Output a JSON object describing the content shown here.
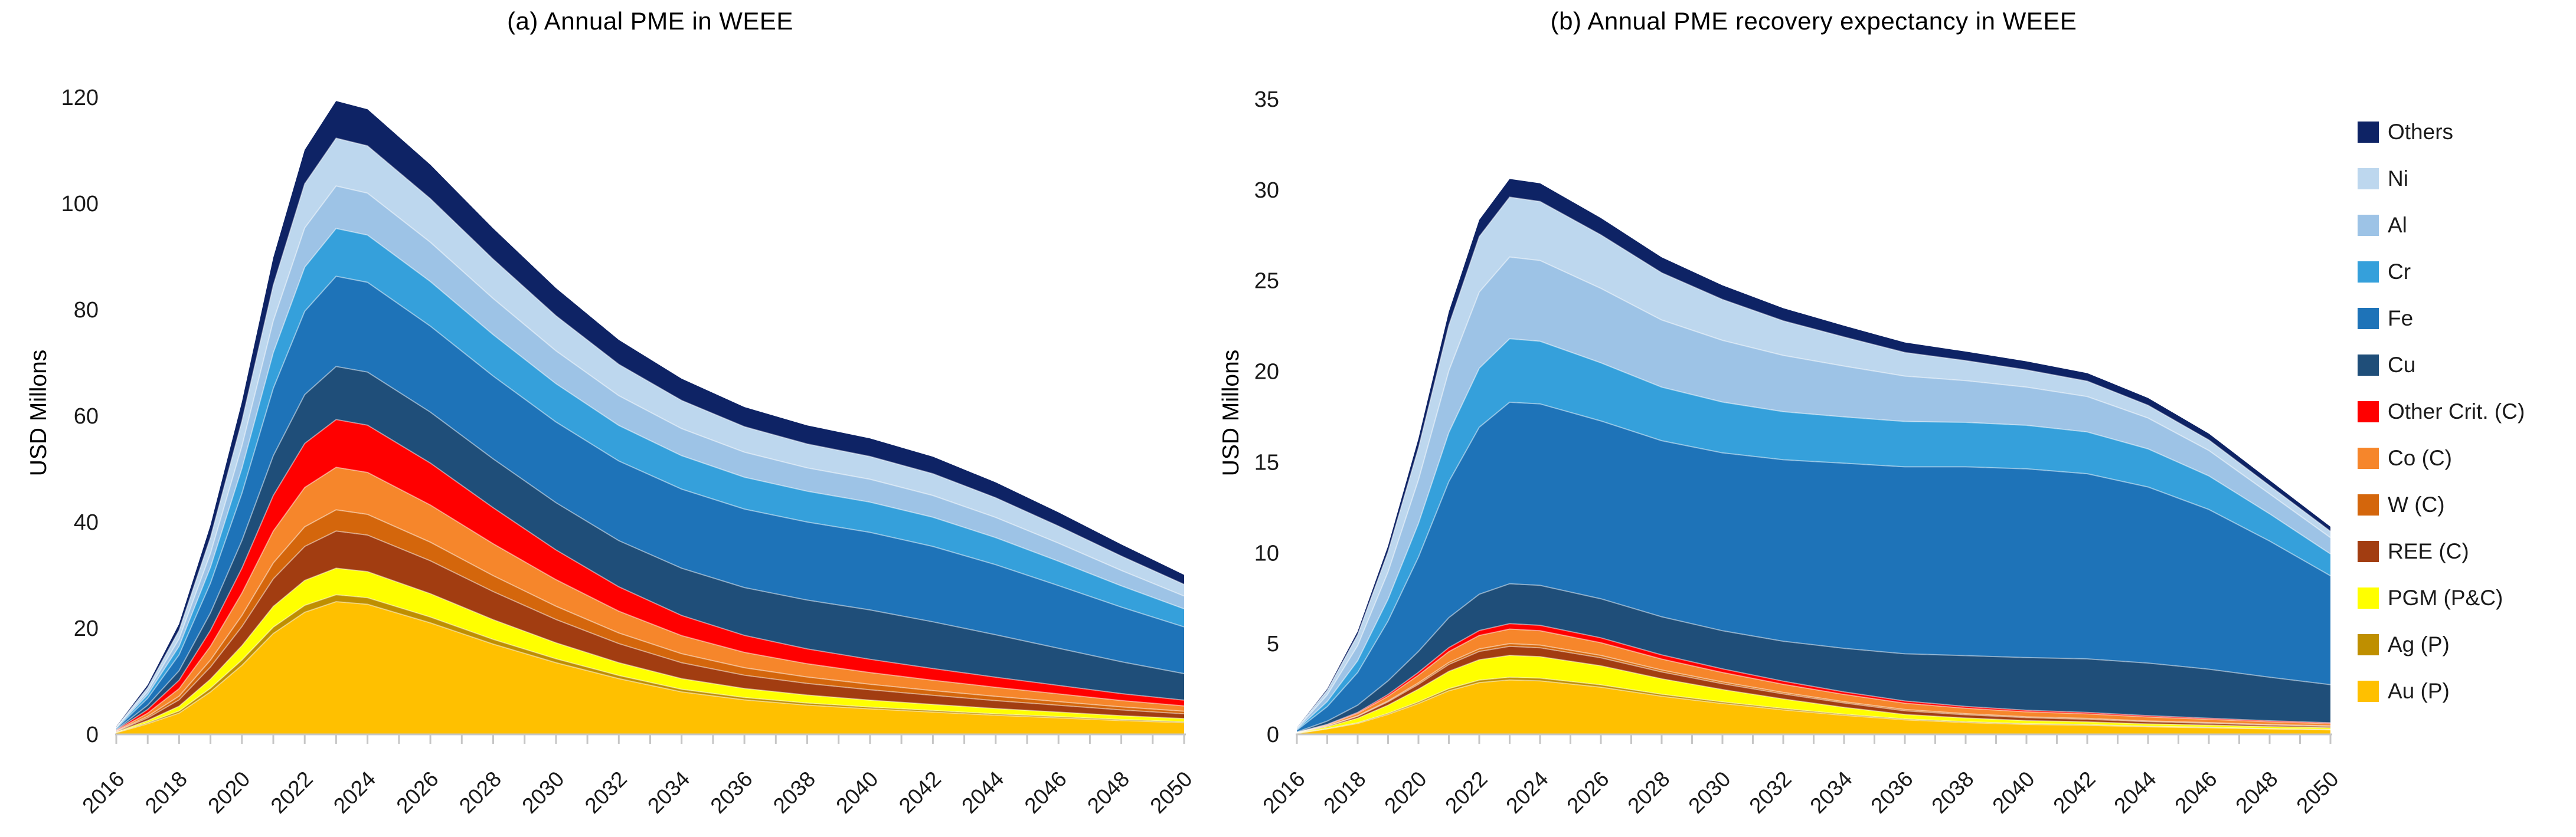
{
  "figure": {
    "background_color": "#FFFFFF",
    "axis_color": "#C6C6C6",
    "tick_label_color": "#1A1A1A"
  },
  "legend": {
    "position": "outside-right",
    "items": [
      {
        "label": "Others",
        "color": "#0E2365"
      },
      {
        "label": "Ni",
        "color": "#BDD7EE"
      },
      {
        "label": "Al",
        "color": "#9DC3E6"
      },
      {
        "label": "Cr",
        "color": "#35A0DB"
      },
      {
        "label": "Fe",
        "color": "#1E73B8"
      },
      {
        "label": "Cu",
        "color": "#1F4E79"
      },
      {
        "label": "Other Crit. (C)",
        "color": "#FF0000"
      },
      {
        "label": "Co (C)",
        "color": "#F6862B"
      },
      {
        "label": "W (C)",
        "color": "#D4660C"
      },
      {
        "label": "REE (C)",
        "color": "#A23D11"
      },
      {
        "label": "PGM (P&C)",
        "color": "#FFFF00"
      },
      {
        "label": "Ag (P)",
        "color": "#BF8F00"
      },
      {
        "label": "Au (P)",
        "color": "#FFC000"
      }
    ]
  },
  "chart_data": [
    {
      "type": "area",
      "stacked": true,
      "title": "(a) Annual PME in WEEE",
      "xlabel": "",
      "ylabel": "USD Millons",
      "ylim": [
        0,
        120
      ],
      "y_ticks": [
        0,
        20,
        40,
        60,
        80,
        100,
        120
      ],
      "grid": false,
      "x": [
        2016,
        2017,
        2018,
        2019,
        2020,
        2021,
        2022,
        2023,
        2024,
        2026,
        2028,
        2030,
        2032,
        2034,
        2036,
        2038,
        2040,
        2042,
        2044,
        2046,
        2048,
        2050
      ],
      "x_tick_years": [
        2016,
        2018,
        2020,
        2022,
        2024,
        2026,
        2028,
        2030,
        2032,
        2034,
        2036,
        2038,
        2040,
        2042,
        2044,
        2046,
        2048,
        2050
      ],
      "series": [
        {
          "name": "Au (P)",
          "color": "#FFC000",
          "values": [
            0.3,
            2,
            4,
            8,
            13,
            19,
            23,
            25,
            24.5,
            21,
            17,
            13.5,
            10.5,
            8,
            6.5,
            5.5,
            4.8,
            4.2,
            3.6,
            3.1,
            2.6,
            2.2
          ]
        },
        {
          "name": "Ag (P)",
          "color": "#BF8F00",
          "values": [
            0.05,
            0.2,
            0.4,
            0.7,
            1,
            1.2,
            1.3,
            1.3,
            1.25,
            1.1,
            0.9,
            0.75,
            0.6,
            0.5,
            0.45,
            0.4,
            0.35,
            0.3,
            0.27,
            0.24,
            0.21,
            0.18
          ]
        },
        {
          "name": "PGM (P&C)",
          "color": "#FFFF00",
          "values": [
            0.1,
            0.4,
            0.9,
            1.7,
            2.7,
            3.9,
            4.7,
            5,
            4.9,
            4.4,
            3.7,
            3,
            2.4,
            2,
            1.7,
            1.5,
            1.3,
            1.15,
            1,
            0.85,
            0.7,
            0.6
          ]
        },
        {
          "name": "REE (C)",
          "color": "#A23D11",
          "values": [
            0.1,
            0.5,
            1.2,
            2.3,
            3.6,
            5.2,
            6.4,
            7,
            6.9,
            6.2,
            5.3,
            4.4,
            3.6,
            3,
            2.5,
            2.2,
            1.95,
            1.7,
            1.5,
            1.3,
            1.1,
            0.9
          ]
        },
        {
          "name": "W (C)",
          "color": "#D4660C",
          "values": [
            0.05,
            0.3,
            0.7,
            1.3,
            2.1,
            3,
            3.7,
            4,
            3.9,
            3.5,
            3,
            2.5,
            2,
            1.7,
            1.4,
            1.2,
            1.05,
            0.9,
            0.8,
            0.68,
            0.57,
            0.47
          ]
        },
        {
          "name": "Co (C)",
          "color": "#F6862B",
          "values": [
            0.1,
            0.6,
            1.4,
            2.6,
            4.2,
            6,
            7.4,
            8,
            7.9,
            7,
            6,
            5,
            4.1,
            3.4,
            2.9,
            2.5,
            2.2,
            1.95,
            1.7,
            1.45,
            1.2,
            1
          ]
        },
        {
          "name": "Other Crit. (C)",
          "color": "#FF0000",
          "values": [
            0.1,
            0.7,
            1.6,
            3,
            4.7,
            6.7,
            8.3,
            9,
            8.9,
            7.9,
            6.8,
            5.6,
            4.6,
            3.8,
            3.2,
            2.8,
            2.5,
            2.2,
            1.9,
            1.6,
            1.3,
            1.1
          ]
        },
        {
          "name": "Cu",
          "color": "#1F4E79",
          "values": [
            0.1,
            0.8,
            1.8,
            3.3,
            5.2,
            7.5,
            9.2,
            10,
            10,
            9.6,
            9.2,
            8.9,
            8.7,
            8.9,
            9,
            9.2,
            9.3,
            8.8,
            8,
            7,
            6,
            5
          ]
        },
        {
          "name": "Fe",
          "color": "#1E73B8",
          "values": [
            0.2,
            1.3,
            3,
            5.6,
            8.9,
            12.7,
            15.7,
            17,
            16.9,
            16.2,
            15.6,
            15.2,
            15,
            14.9,
            14.8,
            14.7,
            14.6,
            14.2,
            13.2,
            11.8,
            10.3,
            8.8
          ]
        },
        {
          "name": "Cr",
          "color": "#35A0DB",
          "values": [
            0.1,
            0.7,
            1.6,
            3,
            4.7,
            6.7,
            8.3,
            9,
            8.9,
            8.4,
            7.8,
            7.2,
            6.7,
            6.3,
            6,
            5.8,
            5.7,
            5.5,
            5.1,
            4.6,
            4,
            3.4
          ]
        },
        {
          "name": "Al",
          "color": "#9DC3E6",
          "values": [
            0.1,
            0.6,
            1.4,
            2.6,
            4.2,
            6,
            7.4,
            8,
            7.9,
            7.4,
            6.8,
            6.2,
            5.6,
            5.1,
            4.7,
            4.4,
            4.3,
            4.1,
            3.8,
            3.4,
            2.9,
            2.4
          ]
        },
        {
          "name": "Ni",
          "color": "#BDD7EE",
          "values": [
            0.1,
            0.7,
            1.6,
            3,
            4.7,
            6.7,
            8.3,
            9,
            8.9,
            8.2,
            7.4,
            6.6,
            5.9,
            5.3,
            4.8,
            4.5,
            4.3,
            4.1,
            3.7,
            3.2,
            2.7,
            2.2
          ]
        },
        {
          "name": "Others",
          "color": "#0E2365",
          "values": [
            0.1,
            0.5,
            1.2,
            2.3,
            3.6,
            5.2,
            6.4,
            7,
            6.9,
            6.4,
            5.8,
            5.2,
            4.6,
            4.1,
            3.7,
            3.5,
            3.4,
            3.2,
            2.9,
            2.6,
            2.2,
            1.8
          ]
        }
      ]
    },
    {
      "type": "area",
      "stacked": true,
      "title": "(b) Annual PME recovery expectancy in WEEE",
      "xlabel": "",
      "ylabel": "USD Millons",
      "ylim": [
        0,
        35
      ],
      "y_ticks": [
        0,
        5,
        10,
        15,
        20,
        25,
        30,
        35
      ],
      "grid": false,
      "x": [
        2016,
        2017,
        2018,
        2019,
        2020,
        2021,
        2022,
        2023,
        2024,
        2026,
        2028,
        2030,
        2032,
        2034,
        2036,
        2038,
        2040,
        2042,
        2044,
        2046,
        2048,
        2050
      ],
      "x_tick_years": [
        2016,
        2018,
        2020,
        2022,
        2024,
        2026,
        2028,
        2030,
        2032,
        2034,
        2036,
        2038,
        2040,
        2042,
        2044,
        2046,
        2048,
        2050
      ],
      "series": [
        {
          "name": "Au (P)",
          "color": "#FFC000",
          "values": [
            0.05,
            0.3,
            0.6,
            1.1,
            1.7,
            2.4,
            2.85,
            3,
            2.95,
            2.6,
            2.1,
            1.7,
            1.35,
            1.05,
            0.8,
            0.65,
            0.55,
            0.5,
            0.42,
            0.36,
            0.3,
            0.25
          ]
        },
        {
          "name": "Ag (P)",
          "color": "#BF8F00",
          "values": [
            0.01,
            0.02,
            0.04,
            0.06,
            0.09,
            0.12,
            0.14,
            0.15,
            0.15,
            0.13,
            0.11,
            0.09,
            0.08,
            0.06,
            0.05,
            0.05,
            0.04,
            0.04,
            0.03,
            0.03,
            0.02,
            0.02
          ]
        },
        {
          "name": "PGM (P&C)",
          "color": "#FFFF00",
          "values": [
            0.02,
            0.1,
            0.25,
            0.45,
            0.7,
            0.95,
            1.12,
            1.2,
            1.18,
            1.05,
            0.85,
            0.68,
            0.52,
            0.38,
            0.25,
            0.2,
            0.17,
            0.15,
            0.13,
            0.12,
            0.11,
            0.1
          ]
        },
        {
          "name": "REE (C)",
          "color": "#A23D11",
          "values": [
            0.01,
            0.04,
            0.1,
            0.18,
            0.27,
            0.38,
            0.46,
            0.5,
            0.49,
            0.44,
            0.38,
            0.32,
            0.28,
            0.24,
            0.2,
            0.18,
            0.16,
            0.14,
            0.12,
            0.1,
            0.08,
            0.07
          ]
        },
        {
          "name": "W (C)",
          "color": "#D4660C",
          "values": [
            0.005,
            0.01,
            0.03,
            0.05,
            0.08,
            0.11,
            0.14,
            0.15,
            0.15,
            0.13,
            0.11,
            0.1,
            0.08,
            0.07,
            0.07,
            0.06,
            0.05,
            0.05,
            0.04,
            0.04,
            0.03,
            0.03
          ]
        },
        {
          "name": "Co (C)",
          "color": "#F6862B",
          "values": [
            0.01,
            0.06,
            0.14,
            0.26,
            0.42,
            0.6,
            0.74,
            0.8,
            0.79,
            0.7,
            0.6,
            0.52,
            0.45,
            0.4,
            0.35,
            0.3,
            0.27,
            0.25,
            0.22,
            0.18,
            0.15,
            0.12
          ]
        },
        {
          "name": "Other Crit. (C)",
          "color": "#FF0000",
          "values": [
            0.005,
            0.02,
            0.05,
            0.1,
            0.16,
            0.22,
            0.27,
            0.3,
            0.3,
            0.27,
            0.23,
            0.2,
            0.17,
            0.14,
            0.12,
            0.1,
            0.09,
            0.08,
            0.07,
            0.06,
            0.06,
            0.05
          ]
        },
        {
          "name": "Cu",
          "color": "#1F4E79",
          "values": [
            0.02,
            0.18,
            0.4,
            0.75,
            1.15,
            1.65,
            2,
            2.2,
            2.2,
            2.15,
            2.1,
            2.1,
            2.2,
            2.4,
            2.6,
            2.8,
            2.9,
            2.95,
            2.9,
            2.7,
            2.4,
            2.1
          ]
        },
        {
          "name": "Fe",
          "color": "#1E73B8",
          "values": [
            0.1,
            0.8,
            1.8,
            3.3,
            5.2,
            7.5,
            9.2,
            10,
            10,
            9.8,
            9.7,
            9.8,
            10,
            10.2,
            10.3,
            10.4,
            10.4,
            10.2,
            9.7,
            8.8,
            7.5,
            6
          ]
        },
        {
          "name": "Cr",
          "color": "#35A0DB",
          "values": [
            0.04,
            0.28,
            0.65,
            1.2,
            1.85,
            2.7,
            3.25,
            3.5,
            3.45,
            3.2,
            2.95,
            2.8,
            2.65,
            2.55,
            2.5,
            2.45,
            2.4,
            2.3,
            2.1,
            1.85,
            1.5,
            1.2
          ]
        },
        {
          "name": "Al",
          "color": "#9DC3E6",
          "values": [
            0.05,
            0.36,
            0.83,
            1.5,
            2.4,
            3.4,
            4.2,
            4.5,
            4.45,
            4.1,
            3.7,
            3.4,
            3.1,
            2.8,
            2.5,
            2.3,
            2.1,
            1.95,
            1.7,
            1.4,
            1.1,
            0.9
          ]
        },
        {
          "name": "Ni",
          "color": "#BDD7EE",
          "values": [
            0.04,
            0.26,
            0.6,
            1.1,
            1.75,
            2.5,
            3.05,
            3.3,
            3.25,
            2.95,
            2.6,
            2.25,
            1.9,
            1.6,
            1.3,
            1.1,
            0.95,
            0.85,
            0.7,
            0.58,
            0.45,
            0.35
          ]
        },
        {
          "name": "Others",
          "color": "#0E2365",
          "values": [
            0.01,
            0.08,
            0.18,
            0.33,
            0.52,
            0.75,
            0.92,
            1,
            1,
            0.93,
            0.85,
            0.78,
            0.7,
            0.62,
            0.55,
            0.5,
            0.47,
            0.44,
            0.4,
            0.35,
            0.3,
            0.25
          ]
        }
      ]
    }
  ]
}
